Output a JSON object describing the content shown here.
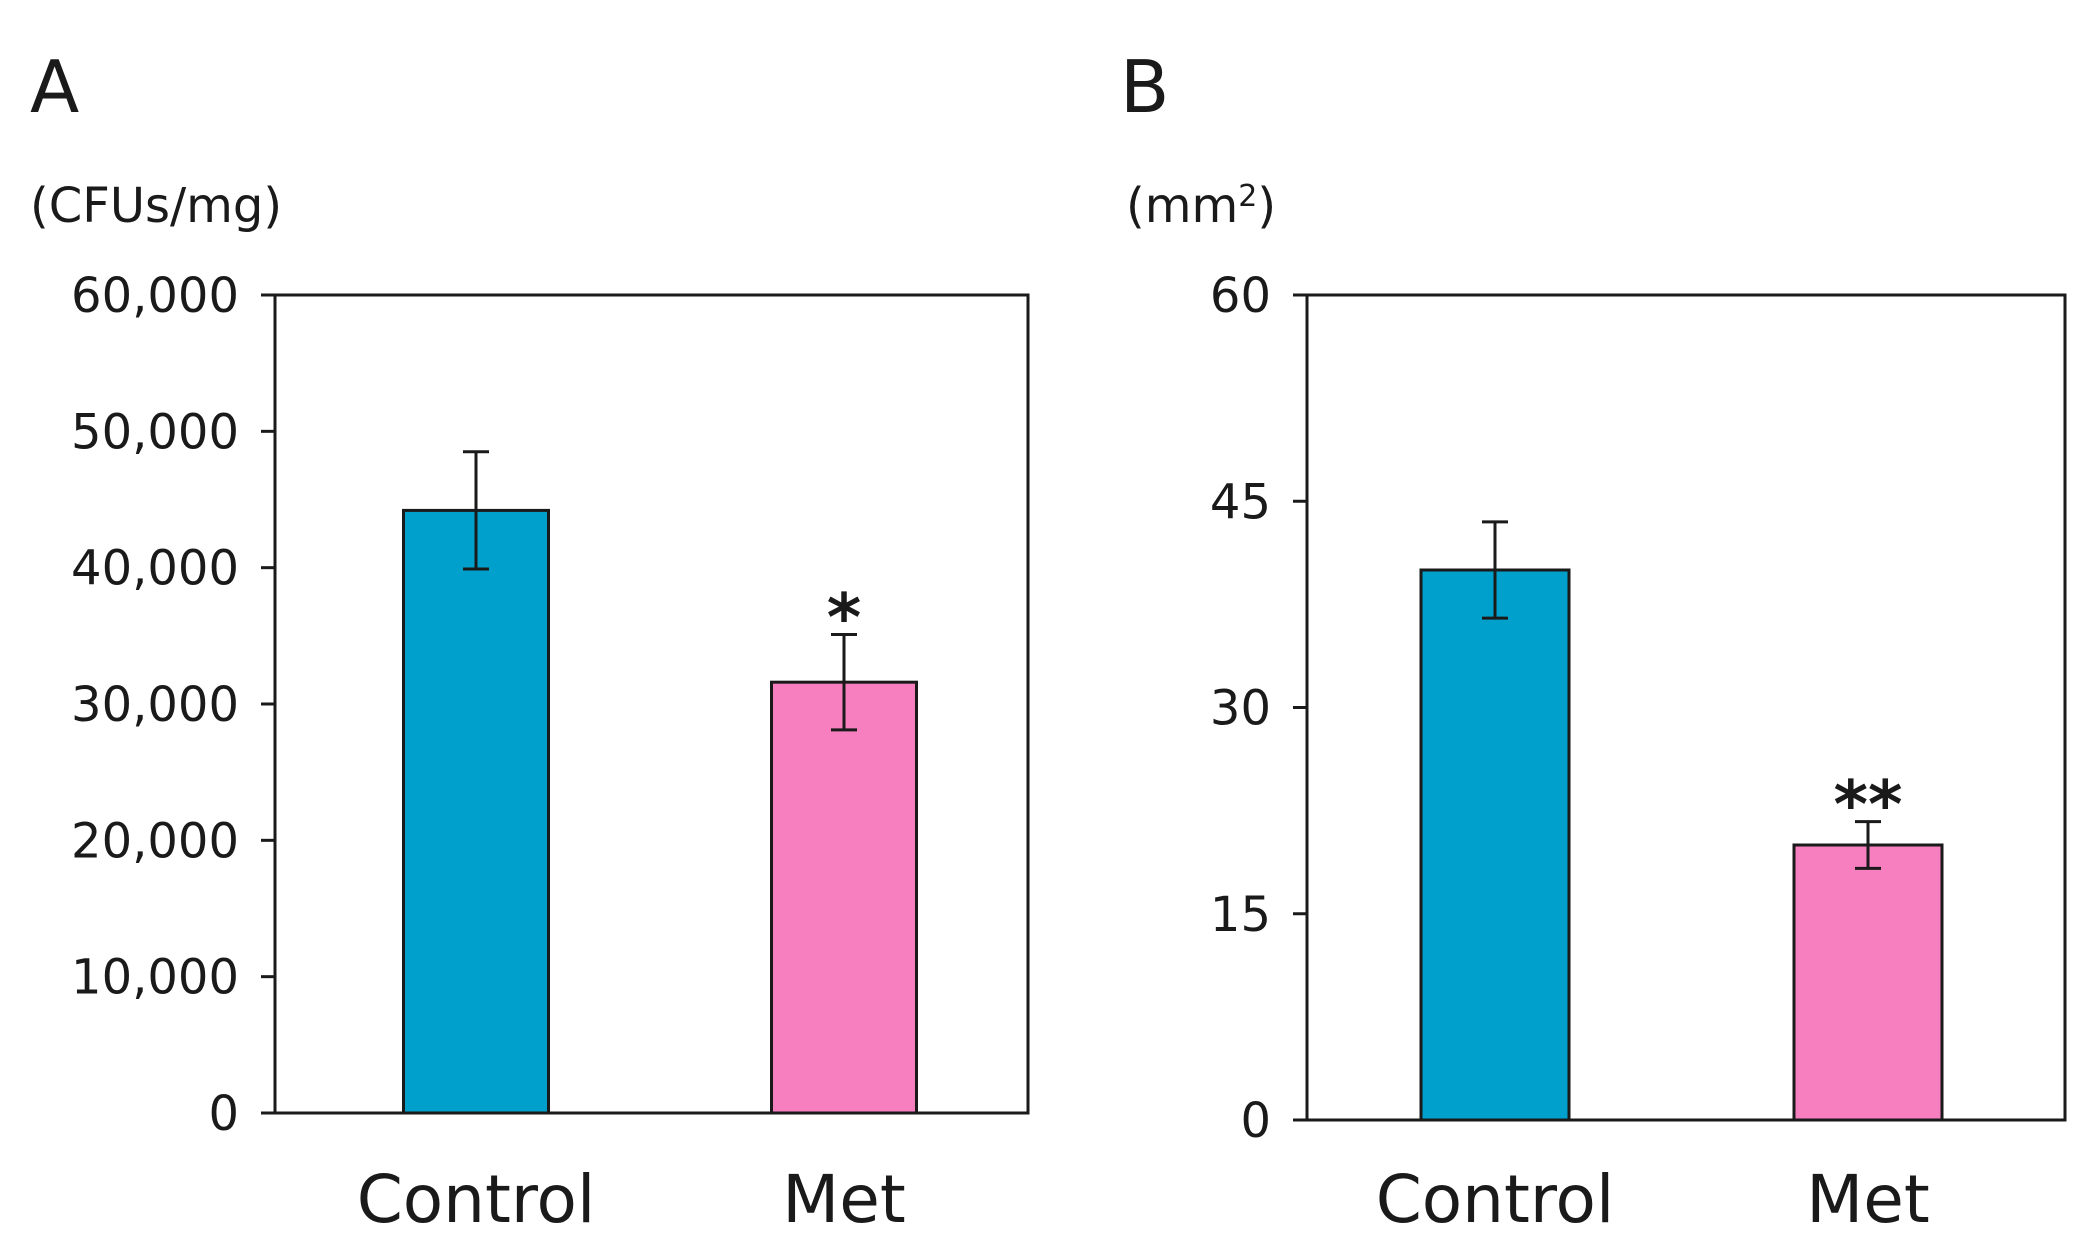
{
  "colors": {
    "control": "#00A0CC",
    "met": "#F77FC0",
    "axis": "#1a1a1a"
  },
  "chart_data": [
    {
      "type": "bar",
      "panel": "A",
      "unit": "(CFUs/mg)",
      "categories": [
        "Control",
        "Met"
      ],
      "values": [
        44200,
        31600
      ],
      "errors": [
        4300,
        3500
      ],
      "significance": [
        "",
        "*"
      ],
      "ylim": [
        0,
        60000
      ],
      "yticks": [
        0,
        10000,
        20000,
        30000,
        40000,
        50000,
        60000
      ],
      "ytick_labels": [
        "0",
        "10,000",
        "20,000",
        "30,000",
        "40,000",
        "50,000",
        "60,000"
      ],
      "grid": false,
      "legend": "none"
    },
    {
      "type": "bar",
      "panel": "B",
      "unit_base": "(mm",
      "unit_sup": "2",
      "unit_tail": ")",
      "categories": [
        "Control",
        "Met"
      ],
      "values": [
        40,
        20
      ],
      "errors": [
        3.5,
        1.7
      ],
      "significance": [
        "",
        "**"
      ],
      "ylim": [
        0,
        60
      ],
      "yticks": [
        0,
        15,
        30,
        45,
        60
      ],
      "ytick_labels": [
        "0",
        "15",
        "30",
        "45",
        "60"
      ],
      "grid": false,
      "legend": "none"
    }
  ]
}
